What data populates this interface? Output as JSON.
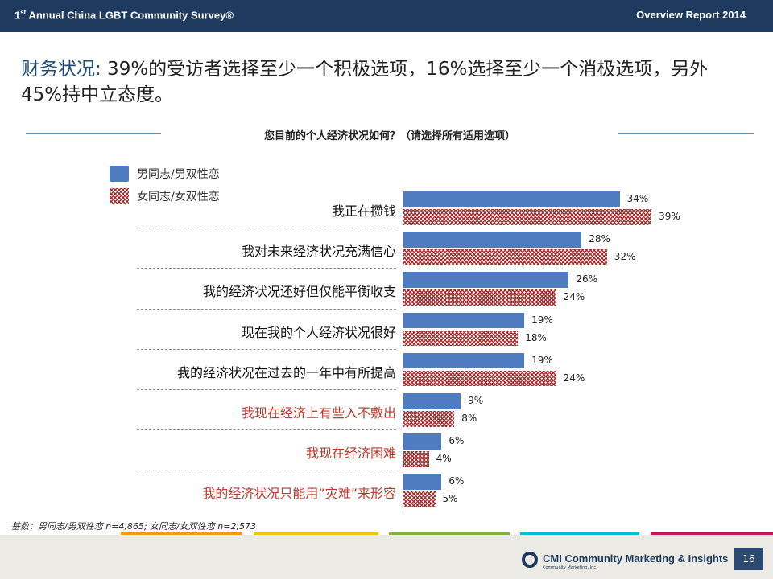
{
  "header": {
    "left_prefix": "1",
    "left_sup": "st",
    "left_rest": " Annual China LGBT Community Survey®",
    "right": "Overview Report 2014"
  },
  "headline": {
    "key": "财务状况:",
    "text": " 39%的受访者选择至少一个积极选项，16%选择至少一个消极选项，另外45%持中立态度。"
  },
  "chart_data": {
    "type": "bar",
    "title": "您目前的个人经济状况如何？（请选择所有适用选项）",
    "orientation": "horizontal",
    "categories": [
      "我正在攒钱",
      "我对未来经济状况充满信心",
      "我的经济状况还好但仅能平衡收支",
      "现在我的个人经济状况很好",
      "我的经济状况在过去的一年中有所提高",
      "我现在经济上有些入不敷出",
      "我现在经济困难",
      "我的经济状况只能用”灾难”来形容"
    ],
    "negative_flags": [
      false,
      false,
      false,
      false,
      false,
      true,
      true,
      true
    ],
    "series": [
      {
        "name": "男同志/男双性恋",
        "values": [
          34,
          28,
          26,
          19,
          19,
          9,
          6,
          6
        ],
        "color": "#4f7cc0",
        "style": "solid"
      },
      {
        "name": "女同志/女双性恋",
        "values": [
          39,
          32,
          24,
          18,
          24,
          8,
          4,
          5
        ],
        "color": "#a32b2b",
        "style": "hatched"
      }
    ],
    "value_suffix": "%",
    "xlim": [
      0,
      100
    ],
    "legend_position": "top-left",
    "negative_label_color": "#c0392b"
  },
  "footnote": "基数：男同志/男双性恋 n=4,865; 女同志/女双性恋 n=2,573",
  "footer": {
    "logo_text": "CMI Community Marketing & Insights",
    "logo_sub": "Community Marketing, Inc.",
    "page_number": "16"
  },
  "colors": {
    "header_bg": "#1f3a5f",
    "accent_blue": "#4f7cc0",
    "accent_red": "#a32b2b",
    "stripe_colors": [
      "#2e75b6",
      "#f39c12",
      "#f1c40f",
      "#7cb342",
      "#00bcd4",
      "#c2185b"
    ]
  }
}
